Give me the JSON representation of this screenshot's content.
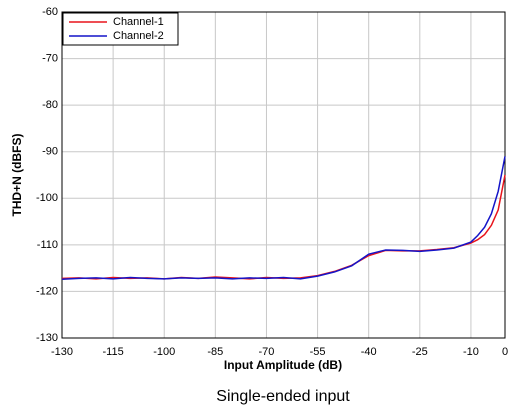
{
  "chart_data": {
    "type": "line",
    "title": "Single-ended input",
    "x_label": "Input Amplitude (dB)",
    "y_label": "THD+N (dBFS)",
    "x": [
      -130,
      -125,
      -120,
      -115,
      -110,
      -105,
      -100,
      -95,
      -90,
      -85,
      -80,
      -75,
      -70,
      -65,
      -60,
      -55,
      -50,
      -45,
      -40,
      -35,
      -30,
      -25,
      -20,
      -15,
      -10,
      -8,
      -6,
      -4,
      -2,
      0
    ],
    "series": [
      {
        "name": "Channel-1",
        "color": "#e8141c",
        "values": [
          -117.2,
          -117.1,
          -117.3,
          -117.0,
          -117.2,
          -117.1,
          -117.3,
          -117.0,
          -117.2,
          -116.9,
          -117.1,
          -117.3,
          -117.0,
          -117.2,
          -117.1,
          -116.6,
          -115.7,
          -114.4,
          -112.3,
          -111.2,
          -111.3,
          -111.3,
          -111.0,
          -110.6,
          -109.6,
          -108.9,
          -107.8,
          -105.8,
          -102.5,
          -95
        ]
      },
      {
        "name": "Channel-2",
        "color": "#1414c8",
        "values": [
          -117.4,
          -117.2,
          -117.1,
          -117.3,
          -117.0,
          -117.2,
          -117.3,
          -117.1,
          -117.2,
          -117.1,
          -117.3,
          -117.1,
          -117.2,
          -117.0,
          -117.3,
          -116.7,
          -115.8,
          -114.5,
          -112.0,
          -111.1,
          -111.2,
          -111.4,
          -111.1,
          -110.7,
          -109.4,
          -108.0,
          -106.2,
          -103.3,
          -98.5,
          -91
        ]
      }
    ],
    "xlim": [
      -130,
      0
    ],
    "ylim": [
      -130,
      -60
    ],
    "xticks": [
      -130,
      -115,
      -100,
      -85,
      -70,
      -55,
      -40,
      -25,
      -10,
      0
    ],
    "yticks": [
      -60,
      -70,
      -80,
      -90,
      -100,
      -110,
      -120,
      -130
    ],
    "grid": true,
    "legend_position": "upper left"
  }
}
